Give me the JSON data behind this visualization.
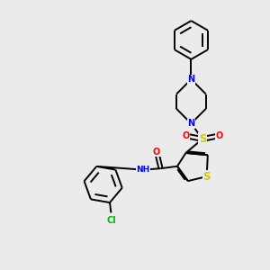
{
  "background_color": "#ebebeb",
  "bond_color": "#000000",
  "atom_colors": {
    "N": "#0000ff",
    "S": "#cccc00",
    "O": "#ff0000",
    "Cl": "#00bb00",
    "H": "#000000"
  },
  "figsize": [
    3.0,
    3.0
  ],
  "dpi": 100,
  "xlim": [
    0,
    10
  ],
  "ylim": [
    0,
    10
  ]
}
